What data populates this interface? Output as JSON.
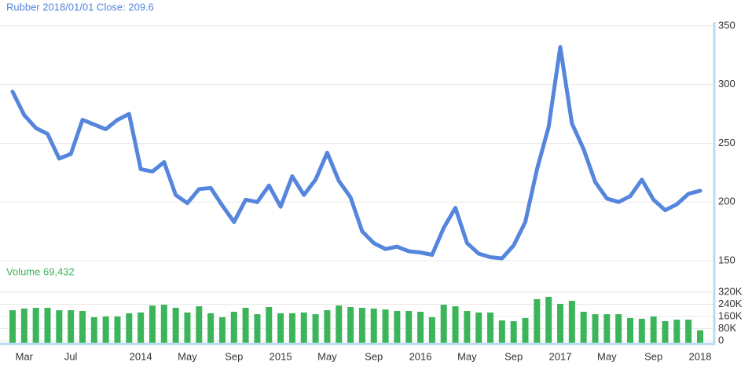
{
  "chart_data": [
    {
      "type": "line",
      "title": "Rubber 2018/01/01 Close: 209.6",
      "series": [
        {
          "name": "Close",
          "color": "#5585dc",
          "values": [
            294,
            274,
            263,
            258,
            237,
            241,
            270,
            266,
            262,
            270,
            275,
            228,
            226,
            234,
            206,
            199,
            211,
            212,
            197,
            183,
            202,
            200,
            214,
            196,
            222,
            206,
            219,
            242,
            218,
            204,
            175,
            165,
            160,
            162,
            158,
            157,
            155,
            178,
            195,
            165,
            156,
            153,
            152,
            163,
            183,
            228,
            264,
            332,
            267,
            245,
            217,
            203,
            200,
            205,
            219,
            202,
            193,
            198,
            207,
            209.6
          ]
        }
      ],
      "ylim": [
        150,
        350
      ],
      "yticks": [
        150,
        200,
        250,
        300,
        350
      ],
      "grid": true
    },
    {
      "type": "bar",
      "title": "Volume 69,432",
      "categories": [
        null,
        "Mar",
        null,
        null,
        null,
        "Jul",
        null,
        null,
        null,
        null,
        null,
        "2014",
        null,
        null,
        null,
        "May",
        null,
        null,
        null,
        "Sep",
        null,
        null,
        null,
        "2015",
        null,
        null,
        null,
        "May",
        null,
        null,
        null,
        "Sep",
        null,
        null,
        null,
        "2016",
        null,
        null,
        null,
        "May",
        null,
        null,
        null,
        "Sep",
        null,
        null,
        null,
        "2017",
        null,
        null,
        null,
        "May",
        null,
        null,
        null,
        "Sep",
        null,
        null,
        null,
        "2018"
      ],
      "series": [
        {
          "name": "Volume",
          "color": "#3cb55a",
          "values": [
            201000,
            212000,
            217000,
            217000,
            201000,
            201000,
            196000,
            155000,
            160000,
            160000,
            181000,
            186000,
            232000,
            237000,
            217000,
            186000,
            227000,
            181000,
            155000,
            191000,
            217000,
            175000,
            222000,
            181000,
            181000,
            186000,
            175000,
            201000,
            232000,
            222000,
            217000,
            212000,
            206000,
            196000,
            196000,
            191000,
            155000,
            237000,
            227000,
            196000,
            186000,
            186000,
            134000,
            129000,
            150000,
            274000,
            289000,
            243000,
            263000,
            191000,
            175000,
            175000,
            175000,
            150000,
            145000,
            160000,
            129000,
            139000,
            139000,
            69432
          ]
        }
      ],
      "ylim": [
        0,
        320000
      ],
      "yticks": [
        0,
        {
          "value": 80000,
          "label": "80K"
        },
        {
          "value": 160000,
          "label": "160K"
        },
        {
          "value": 240000,
          "label": "240K"
        },
        {
          "value": 320000,
          "label": "320K"
        }
      ],
      "grid": true
    }
  ]
}
